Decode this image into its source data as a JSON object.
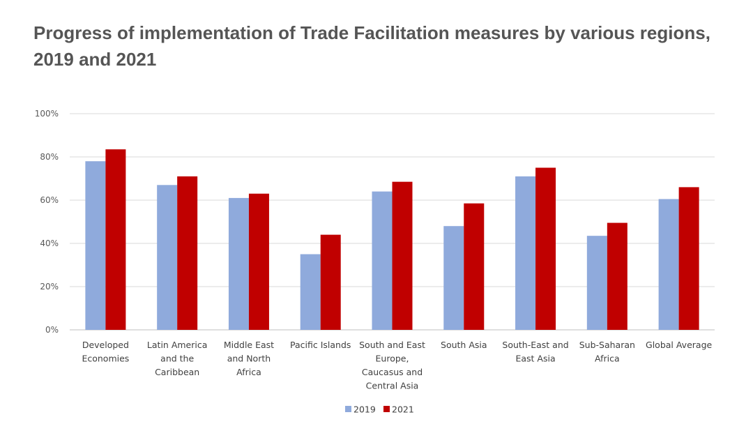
{
  "chart_data": {
    "type": "bar",
    "title": "Progress of implementation of Trade Facilitation measures by various regions, 2019 and 2021",
    "categories": [
      [
        "Developed",
        "Economies"
      ],
      [
        "Latin America",
        "and the",
        "Caribbean"
      ],
      [
        "Middle East",
        "and North",
        "Africa"
      ],
      [
        "Pacific Islands"
      ],
      [
        "South and East",
        "Europe,",
        "Caucasus and",
        "Central Asia"
      ],
      [
        "South Asia"
      ],
      [
        "South-East and",
        "East Asia"
      ],
      [
        "Sub-Saharan",
        "Africa"
      ],
      [
        "Global Average"
      ]
    ],
    "series": [
      {
        "name": "2019",
        "color": "#8faadc",
        "values": [
          78,
          67,
          61,
          35,
          64,
          48,
          71,
          43.5,
          60.5
        ]
      },
      {
        "name": "2021",
        "color": "#c00000",
        "values": [
          83.5,
          71,
          63,
          44,
          68.5,
          58.5,
          75,
          49.5,
          66
        ]
      }
    ],
    "ylim": [
      0,
      100
    ],
    "yticks": [
      0,
      20,
      40,
      60,
      80,
      100
    ],
    "ytick_labels": [
      "0%",
      "20%",
      "40%",
      "60%",
      "80%",
      "100%"
    ],
    "xlabel": "",
    "ylabel": "",
    "grid": true,
    "legend": "bottom-center"
  }
}
